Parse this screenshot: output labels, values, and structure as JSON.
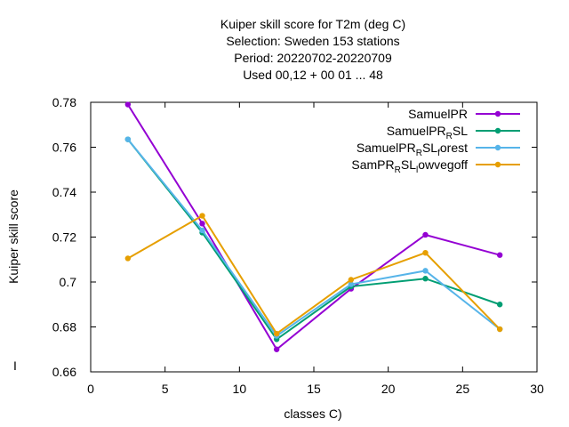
{
  "chart_data": {
    "type": "line",
    "title_lines": [
      "Kuiper skill score  for T2m (deg C)",
      "Selection: Sweden    153 stations",
      "Period: 20220702-20220709",
      "Used  00,12  + 00 01 ... 48"
    ],
    "xlabel": "classes C)",
    "ylabel": "Kuiper skill score",
    "ylabel_extra": "I",
    "xlim": [
      0,
      30
    ],
    "ylim": [
      0.66,
      0.78
    ],
    "xticks": [
      0,
      5,
      10,
      15,
      20,
      25,
      30
    ],
    "xtick_labels": [
      "0",
      "5",
      "10",
      "15",
      "20",
      "25",
      "30"
    ],
    "yticks": [
      0.66,
      0.68,
      0.7,
      0.72,
      0.74,
      0.76,
      0.78
    ],
    "ytick_labels": [
      "0.66",
      "0.68",
      "0.7",
      "0.72",
      "0.74",
      "0.76",
      "0.78"
    ],
    "legend_position": "top-right",
    "x": [
      2.5,
      7.5,
      12.5,
      17.5,
      22.5,
      27.5
    ],
    "series": [
      {
        "name": "SamuelPR",
        "label_parts": [
          {
            "t": "SamuelPR",
            "sub": false
          }
        ],
        "color": "#9400d3",
        "values": [
          0.779,
          0.726,
          0.67,
          0.697,
          0.721,
          0.712
        ]
      },
      {
        "name": "SamuelPR_RSL",
        "label_parts": [
          {
            "t": "SamuelPR",
            "sub": false
          },
          {
            "t": "R",
            "sub": true
          },
          {
            "t": "SL",
            "sub": false
          }
        ],
        "color": "#009e73",
        "values": [
          0.7635,
          0.722,
          0.6745,
          0.698,
          0.7015,
          0.69
        ]
      },
      {
        "name": "SamuelPR_RSL_forest",
        "label_parts": [
          {
            "t": "SamuelPR",
            "sub": false
          },
          {
            "t": "R",
            "sub": true
          },
          {
            "t": "SL",
            "sub": false
          },
          {
            "t": "f",
            "sub": true
          },
          {
            "t": "orest",
            "sub": false
          }
        ],
        "color": "#56b4e9",
        "values": [
          0.7635,
          0.723,
          0.676,
          0.699,
          0.705,
          0.679
        ]
      },
      {
        "name": "SamPR_RSL_lowvegoff",
        "label_parts": [
          {
            "t": "SamPR",
            "sub": false
          },
          {
            "t": "R",
            "sub": true
          },
          {
            "t": "SL",
            "sub": false
          },
          {
            "t": "l",
            "sub": true
          },
          {
            "t": "owvegoff",
            "sub": false
          }
        ],
        "color": "#e69f00",
        "values": [
          0.7105,
          0.7295,
          0.677,
          0.701,
          0.713,
          0.679
        ]
      }
    ]
  }
}
